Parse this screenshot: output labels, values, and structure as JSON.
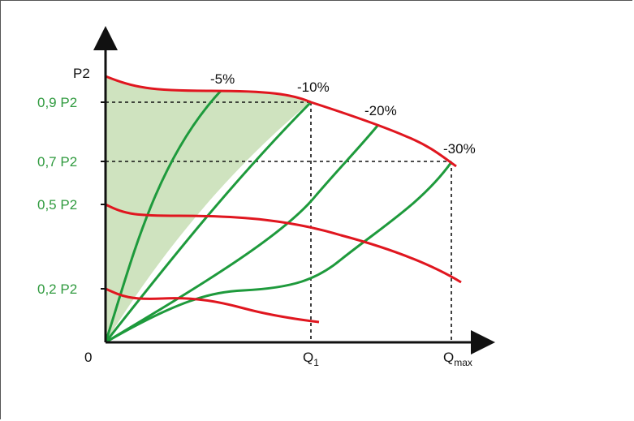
{
  "axes": {
    "y_label": "P2",
    "origin_label": "0",
    "y_ticks": [
      "0,9 P2",
      "0,7 P2",
      "0,5 P2",
      "0,2 P2"
    ],
    "x_ticks": [
      {
        "main": "Q",
        "sub": "1"
      },
      {
        "main": "Q",
        "sub": "max"
      }
    ]
  },
  "curve_labels": [
    "-5%",
    "-10%",
    "-20%",
    "-30%"
  ],
  "colors": {
    "power_curve": "#e0161f",
    "speed_curve": "#1e9a3c",
    "shaded_area": "#cfe3bf",
    "tick_label": "#2f9a3e",
    "axis": "#111111"
  }
}
